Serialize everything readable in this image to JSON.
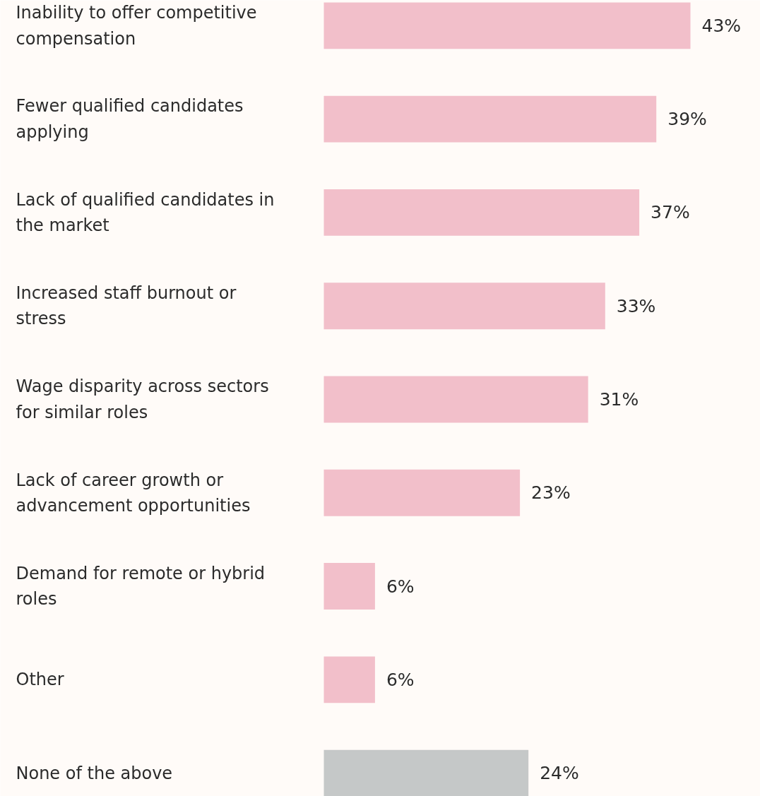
{
  "chart_data": {
    "type": "bar",
    "orientation": "horizontal",
    "categories": [
      "Inability to offer competitive compensation",
      "Fewer qualified candidates applying",
      "Lack of qualified candidates in the market",
      "Increased staff burnout or stress",
      "Wage disparity across sectors for similar roles",
      "Lack of career growth or advancement opportunities",
      "Demand for remote or hybrid roles",
      "Other",
      "None of the above"
    ],
    "values": [
      43,
      39,
      37,
      33,
      31,
      23,
      6,
      6,
      24
    ],
    "value_labels": [
      "43%",
      "39%",
      "37%",
      "33%",
      "31%",
      "23%",
      "6%",
      "6%",
      "24%"
    ],
    "colors": [
      "#f2bfca",
      "#f2bfca",
      "#f2bfca",
      "#f2bfca",
      "#f2bfca",
      "#f2bfca",
      "#f2bfca",
      "#f2bfca",
      "#c5c8c8"
    ]
  }
}
